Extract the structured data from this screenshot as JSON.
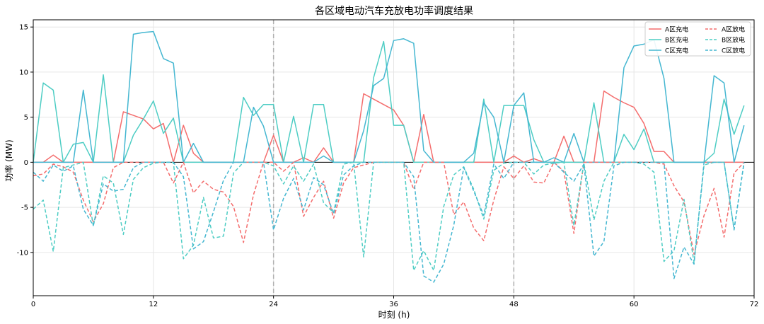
{
  "chart_data": {
    "type": "line",
    "title": "各区域电动汽车充放电功率调度结果",
    "xlabel": "时刻 (h)",
    "ylabel": "功率 (MW)",
    "xlim": [
      0,
      72
    ],
    "ylim": [
      -14.8,
      15.8
    ],
    "xticks": [
      0,
      12,
      24,
      36,
      48,
      60,
      72
    ],
    "yticks": [
      -10,
      -5,
      0,
      5,
      10,
      15
    ],
    "grid": true,
    "day_boundaries": [
      24,
      48
    ],
    "legend_position": "top-right",
    "x": [
      0,
      1,
      2,
      3,
      4,
      5,
      6,
      7,
      8,
      9,
      10,
      11,
      12,
      13,
      14,
      15,
      16,
      17,
      18,
      19,
      20,
      21,
      22,
      23,
      24,
      25,
      26,
      27,
      28,
      29,
      30,
      31,
      32,
      33,
      34,
      35,
      36,
      37,
      38,
      39,
      40,
      41,
      42,
      43,
      44,
      45,
      46,
      47,
      48,
      49,
      50,
      51,
      52,
      53,
      54,
      55,
      56,
      57,
      58,
      59,
      60,
      61,
      62,
      63,
      64,
      65,
      66,
      67,
      68,
      69,
      70,
      71
    ],
    "series": [
      {
        "name": "A区充电",
        "color": "#f46d6d",
        "style": "solid",
        "values": [
          0,
          0,
          0.8,
          0,
          0,
          0,
          0,
          0,
          0,
          5.6,
          5.2,
          4.8,
          3.7,
          4.3,
          0,
          4.1,
          1.0,
          0,
          0,
          0,
          0,
          0,
          0,
          0,
          3.0,
          0,
          0,
          0.5,
          0,
          1.6,
          0,
          0,
          0,
          7.6,
          7.0,
          6.4,
          5.8,
          4.1,
          0,
          5.3,
          0,
          0,
          0,
          0,
          0,
          0,
          0,
          0,
          0.7,
          0,
          0.4,
          0,
          0,
          2.9,
          0,
          0,
          0,
          7.9,
          7.2,
          6.6,
          6.1,
          4.3,
          1.2,
          1.2,
          0,
          0,
          0,
          0,
          0,
          0,
          0,
          0
        ]
      },
      {
        "name": "B区充电",
        "color": "#4ecdc4",
        "style": "solid",
        "values": [
          0,
          8.8,
          8.0,
          0,
          2.0,
          2.2,
          0,
          9.7,
          0,
          0,
          3.0,
          4.8,
          6.8,
          3.2,
          4.9,
          0,
          0,
          0,
          0,
          0,
          0,
          7.2,
          5.2,
          6.4,
          6.4,
          0,
          5.1,
          0,
          6.4,
          6.4,
          0,
          0,
          0,
          0,
          9.4,
          13.4,
          4.1,
          4.1,
          0,
          0,
          0,
          0,
          0,
          0,
          0,
          7.0,
          0,
          6.3,
          6.3,
          6.3,
          2.5,
          0,
          0,
          0,
          0,
          0,
          6.6,
          0,
          0,
          3.1,
          1.4,
          3.7,
          0,
          0,
          0,
          0,
          0,
          0,
          1.0,
          7.0,
          3.1,
          6.3
        ]
      },
      {
        "name": "C区充电",
        "color": "#45b7d1",
        "style": "solid",
        "values": [
          0,
          0,
          0,
          0,
          0,
          8.0,
          0,
          0,
          0,
          0,
          14.2,
          14.4,
          14.5,
          11.5,
          11.0,
          0,
          2.1,
          0,
          0,
          0,
          0,
          0,
          6.1,
          4.0,
          0,
          0,
          0,
          0,
          0,
          0.7,
          0,
          0,
          0,
          3.5,
          8.5,
          9.3,
          13.5,
          13.7,
          13.2,
          1.3,
          0,
          0,
          0,
          0,
          1.0,
          6.6,
          5.0,
          0,
          6.3,
          7.7,
          0,
          0,
          0.5,
          0,
          3.2,
          0,
          0,
          0,
          0,
          10.5,
          12.9,
          13.1,
          13.6,
          9.3,
          0,
          0,
          0,
          0,
          9.6,
          8.8,
          0,
          4.1
        ]
      },
      {
        "name": "A区放电",
        "color": "#f46d6d",
        "style": "dashed",
        "values": [
          -1.5,
          -1.3,
          -0.2,
          -0.5,
          -1.1,
          -4.2,
          -6.6,
          -4.6,
          -0.6,
          0,
          0,
          0,
          0,
          0,
          -2.3,
          0,
          -3.4,
          -2.1,
          -3.0,
          -3.3,
          -4.9,
          -8.9,
          -3.6,
          0,
          0,
          -1.0,
          0,
          -6.0,
          -3.9,
          -2.1,
          -6.2,
          -2.3,
          -0.6,
          -0.3,
          0,
          0,
          0,
          0,
          -3.0,
          0,
          0,
          0,
          -5.8,
          -4.4,
          -7.3,
          -8.7,
          -4.2,
          -0.5,
          -1.8,
          -0.4,
          -2.2,
          -2.3,
          0,
          -1.0,
          -7.9,
          0,
          0,
          0,
          0,
          0,
          0,
          0,
          0,
          -0.2,
          -2.6,
          -4.4,
          -10.2,
          -5.9,
          -2.9,
          -8.3,
          -1.2,
          0
        ]
      },
      {
        "name": "B区放电",
        "color": "#4ecdc4",
        "style": "dashed",
        "values": [
          -5.2,
          -4.2,
          -9.9,
          -0.6,
          -0.3,
          0,
          -7.1,
          -1.5,
          -2.3,
          -8.0,
          -1.9,
          -0.6,
          -0.1,
          0,
          0,
          -10.7,
          -9.2,
          -3.9,
          -8.4,
          -8.2,
          -1.2,
          0,
          0,
          0,
          -0.4,
          -2.4,
          -0.4,
          -2.1,
          -0.2,
          -4.5,
          -5.6,
          -0.2,
          0,
          -10.5,
          0,
          0,
          0,
          0,
          -12.0,
          -9.8,
          -12.0,
          -4.9,
          -1.4,
          -0.5,
          -3.0,
          -6.3,
          -0.9,
          -0.1,
          0,
          0,
          -1.3,
          -0.3,
          -0.1,
          0,
          -7.0,
          -0.1,
          -6.4,
          -2.1,
          0,
          0,
          0,
          -0.2,
          -1.1,
          -11.0,
          -9.8,
          -4.1,
          -11.1,
          -0.3,
          0,
          0,
          -7.4,
          0
        ]
      },
      {
        "name": "C区放电",
        "color": "#45b7d1",
        "style": "dashed",
        "values": [
          -1.1,
          -2.1,
          -0.3,
          -1.0,
          -0.4,
          -5.2,
          -7.0,
          -2.4,
          -3.2,
          -3.0,
          -0.6,
          0,
          0,
          0,
          0,
          -1.6,
          -9.6,
          -8.8,
          -5.5,
          -2.0,
          0,
          0,
          0,
          0,
          -7.5,
          -4.0,
          -1.8,
          -5.3,
          -1.7,
          -2.5,
          -5.7,
          -1.4,
          -0.4,
          0,
          0,
          0,
          0,
          0,
          -1.6,
          -12.6,
          -13.3,
          -11.3,
          -7.0,
          -0.6,
          -3.2,
          -5.9,
          -0.2,
          -1.8,
          0,
          0,
          0,
          0,
          0,
          -1.1,
          -2.1,
          -0.2,
          -10.4,
          -8.8,
          -0.4,
          0,
          0,
          0,
          0,
          0,
          -12.9,
          -9.4,
          -11.3,
          0,
          0,
          0,
          -7.5,
          0
        ]
      }
    ]
  }
}
